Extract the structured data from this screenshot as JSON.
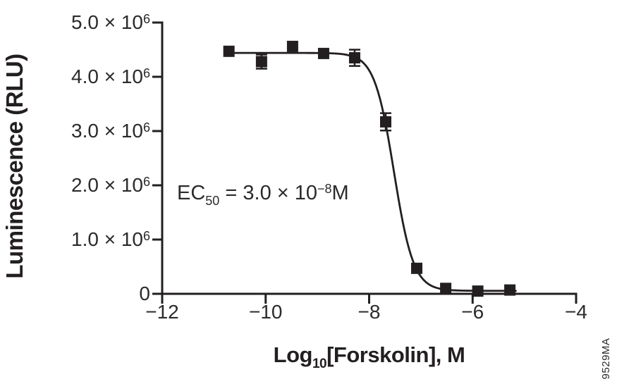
{
  "figure": {
    "background": "#ffffff",
    "ink_color": "#231f20",
    "text_color": "#2c2a2c",
    "watermark": "9529MA",
    "y_axis_title": "Luminescence (RLU)",
    "x_axis_title": {
      "prefix": "Log",
      "sub": "10",
      "suffix": "[Forskolin], M"
    },
    "annotation": {
      "prefix": "EC",
      "sub": "50",
      "mid": " = 3.0 × 10",
      "sup": "−8",
      "suffix": "M"
    }
  },
  "axes": {
    "y_ticks": [
      {
        "main": "5.0 × 10",
        "sup": "6",
        "value": 5000000
      },
      {
        "main": "4.0 × 10",
        "sup": "6",
        "value": 4000000
      },
      {
        "main": "3.0 × 10",
        "sup": "6",
        "value": 3000000
      },
      {
        "main": "2.0 × 10",
        "sup": "6",
        "value": 2000000
      },
      {
        "main": "1.0 × 10",
        "sup": "6",
        "value": 1000000
      },
      {
        "main": "0",
        "sup": "",
        "value": 0
      }
    ],
    "x_ticks": [
      {
        "label": "−12",
        "value": -12
      },
      {
        "label": "−10",
        "value": -10
      },
      {
        "label": "−8",
        "value": -8
      },
      {
        "label": "−6",
        "value": -6
      },
      {
        "label": "−4",
        "value": -4
      }
    ]
  },
  "chart_data": {
    "type": "scatter",
    "title": "",
    "xlabel": "Log10[Forskolin], M",
    "ylabel": "Luminescence (RLU)",
    "xlim": [
      -12,
      -4
    ],
    "ylim": [
      0,
      5000000
    ],
    "x_tick_values": [
      -12,
      -10,
      -8,
      -6,
      -4
    ],
    "y_tick_values": [
      0,
      1000000,
      2000000,
      3000000,
      4000000,
      5000000
    ],
    "grid": false,
    "legend": "none",
    "annotation_text": "EC50 = 3.0 × 10^-8 M",
    "ec50_molar": 3e-08,
    "marker": "filled-square",
    "points": {
      "x": [
        -10.71,
        -10.08,
        -9.48,
        -8.88,
        -8.28,
        -7.68,
        -7.08,
        -6.52,
        -5.9,
        -5.28
      ],
      "y": [
        4470000,
        4280000,
        4560000,
        4430000,
        4350000,
        3170000,
        470000,
        100000,
        50000,
        70000
      ],
      "y_err": [
        0,
        130000,
        0,
        0,
        150000,
        160000,
        0,
        0,
        0,
        0
      ]
    },
    "fit_curve": {
      "model": "4PL",
      "top": 4440000,
      "bottom": 55000,
      "log_ec50": -7.52,
      "hill_slope": 2.3,
      "x_start": -10.71,
      "x_end": -5.15
    }
  }
}
